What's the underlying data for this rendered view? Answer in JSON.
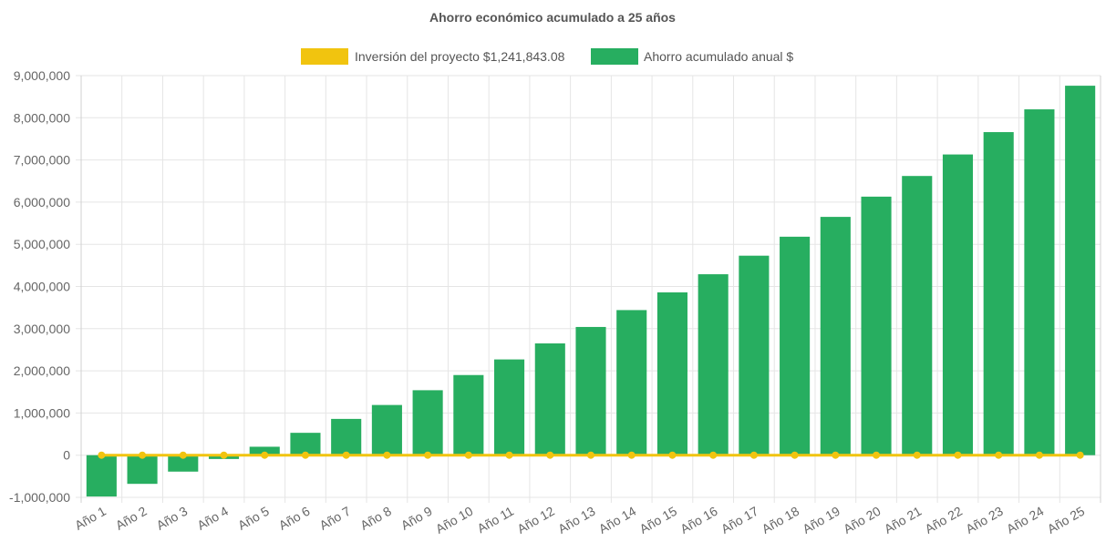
{
  "chart_data": {
    "type": "bar",
    "title": "Ahorro económico acumulado a 25 años",
    "categories": [
      "Año 1",
      "Año 2",
      "Año 3",
      "Año 4",
      "Año 5",
      "Año 6",
      "Año 7",
      "Año 8",
      "Año 9",
      "Año 10",
      "Año 11",
      "Año 12",
      "Año 13",
      "Año 14",
      "Año 15",
      "Año 16",
      "Año 17",
      "Año 18",
      "Año 19",
      "Año 20",
      "Año 21",
      "Año 22",
      "Año 23",
      "Año 24",
      "Año 25"
    ],
    "series": [
      {
        "name": "Inversión del proyecto $1,241,843.08",
        "type": "line",
        "color": "#f1c40f",
        "values": [
          0,
          0,
          0,
          0,
          0,
          0,
          0,
          0,
          0,
          0,
          0,
          0,
          0,
          0,
          0,
          0,
          0,
          0,
          0,
          0,
          0,
          0,
          0,
          0,
          0
        ]
      },
      {
        "name": "Ahorro acumulado anual $",
        "type": "bar",
        "color": "#27ae60",
        "values": [
          -980000,
          -680000,
          -390000,
          -90000,
          200000,
          530000,
          860000,
          1190000,
          1540000,
          1900000,
          2270000,
          2650000,
          3040000,
          3440000,
          3860000,
          4290000,
          4730000,
          5180000,
          5650000,
          6130000,
          6620000,
          7130000,
          7660000,
          8200000,
          8760000
        ]
      }
    ],
    "ylim": [
      -1000000,
      9000000
    ],
    "yticks": [
      "9,000,000",
      "8,000,000",
      "7,000,000",
      "6,000,000",
      "5,000,000",
      "4,000,000",
      "3,000,000",
      "2,000,000",
      "1,000,000",
      "0",
      "-1,000,000"
    ],
    "ytick_values": [
      9000000,
      8000000,
      7000000,
      6000000,
      5000000,
      4000000,
      3000000,
      2000000,
      1000000,
      0,
      -1000000
    ],
    "grid": true,
    "legend_position": "top"
  }
}
